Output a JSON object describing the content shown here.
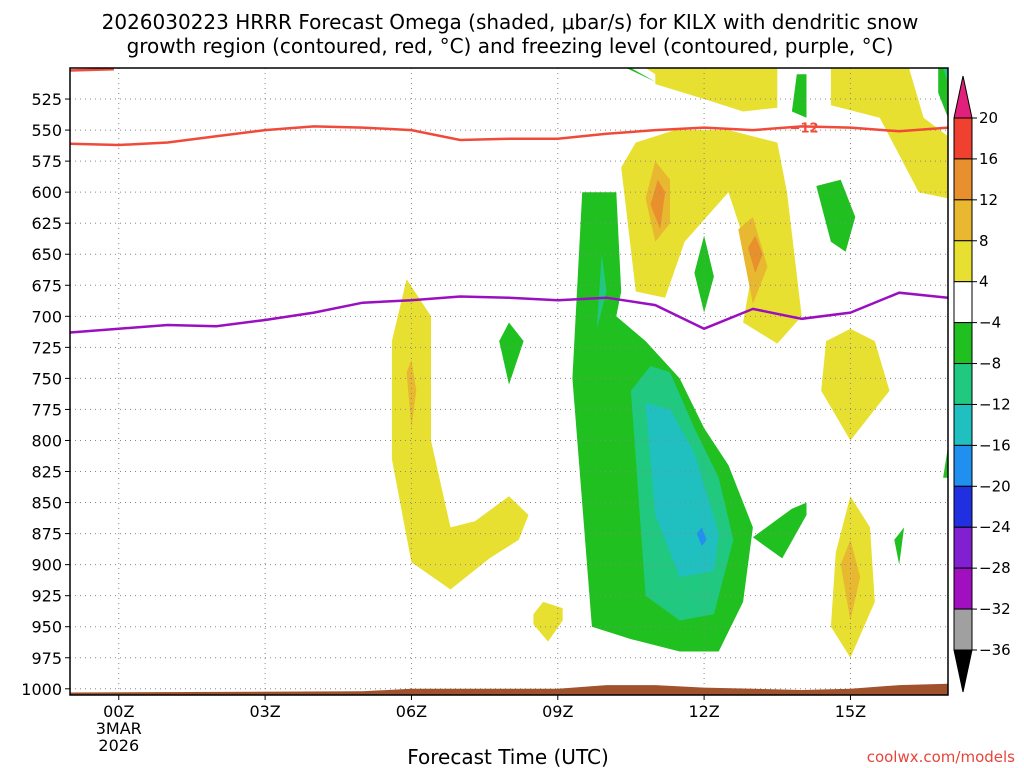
{
  "title_line1": "2026030223 HRRR Forecast Omega (shaded, μbar/s) for KILX with dendritic snow",
  "title_line2": "growth region (contoured, red, °C) and freezing level (contoured, purple, °C)",
  "credit": "coolwx.com/models",
  "chart_data": {
    "type": "heatmap",
    "title": "2026030223 HRRR Forecast Omega (shaded, μbar/s) for KILX with dendritic snow growth region (contoured, red, °C) and freezing level (contoured, purple, °C)",
    "xlabel": "Forecast Time (UTC)",
    "ylabel": "",
    "x_range_hours": [
      -1.0,
      17.0
    ],
    "y_range_hPa": [
      1005,
      500
    ],
    "y_axis_inverted": true,
    "grid": true,
    "x_ticks": [
      {
        "hour": 0,
        "label": "00Z"
      },
      {
        "hour": 3,
        "label": "03Z"
      },
      {
        "hour": 6,
        "label": "06Z"
      },
      {
        "hour": 9,
        "label": "09Z"
      },
      {
        "hour": 12,
        "label": "12Z"
      },
      {
        "hour": 15,
        "label": "15Z"
      }
    ],
    "x_date_line1": "3MAR",
    "x_date_line2": "2026",
    "y_ticks": [
      525,
      550,
      575,
      600,
      625,
      650,
      675,
      700,
      725,
      750,
      775,
      800,
      825,
      850,
      875,
      900,
      925,
      950,
      975,
      1000
    ],
    "colorbar": {
      "placement": "right",
      "levels": [
        20,
        16,
        12,
        8,
        4,
        -4,
        -8,
        -12,
        -16,
        -20,
        -24,
        -28,
        -32,
        -36
      ],
      "labels": [
        "20",
        "16",
        "12",
        "8",
        "4",
        "−4",
        "−8",
        "−12",
        "−16",
        "−20",
        "−24",
        "−28",
        "−32",
        "−36"
      ],
      "colors": [
        "#e8e030",
        "#e8b830",
        "#e8902e",
        "#f04030",
        "#ffffff",
        "#20c020",
        "#20c880",
        "#20c0c0",
        "#2090f0",
        "#2030e0",
        "#8020d0",
        "#a010c0",
        "#a0a0a0"
      ],
      "bin_colors_top_to_bottom": [
        "#f04030",
        "#e8902e",
        "#e8b830",
        "#e8e030",
        "#ffffff",
        "#20c020",
        "#20c880",
        "#20c0c0",
        "#2090f0",
        "#2030e0",
        "#8020d0",
        "#a010c0",
        "#a0a0a0"
      ],
      "over_color": "#e0207a",
      "under_color": "#000000"
    },
    "contours": {
      "dendritic_minus12C": {
        "color": "#f04a3a",
        "label": "−12",
        "points": [
          [
            -1.0,
            561
          ],
          [
            0.0,
            562
          ],
          [
            1.0,
            560
          ],
          [
            2.0,
            555
          ],
          [
            3.0,
            550
          ],
          [
            4.0,
            547
          ],
          [
            5.0,
            548
          ],
          [
            6.0,
            550
          ],
          [
            7.0,
            558
          ],
          [
            8.0,
            557
          ],
          [
            9.0,
            557
          ],
          [
            10.0,
            553
          ],
          [
            11.0,
            550
          ],
          [
            12.0,
            548
          ],
          [
            13.0,
            550
          ],
          [
            14.0,
            547
          ],
          [
            15.0,
            548
          ],
          [
            16.0,
            551
          ],
          [
            17.0,
            548
          ]
        ]
      },
      "dendritic_minus18C_partial": {
        "color": "#f04a3a",
        "points": [
          [
            -1.0,
            502
          ],
          [
            -0.1,
            501
          ]
        ]
      },
      "freezing_level_0C": {
        "color": "#9a10c0",
        "points": [
          [
            -1.0,
            713
          ],
          [
            0.0,
            710
          ],
          [
            1.0,
            707
          ],
          [
            2.0,
            708
          ],
          [
            3.0,
            703
          ],
          [
            4.0,
            697
          ],
          [
            5.0,
            689
          ],
          [
            6.0,
            687
          ],
          [
            7.0,
            684
          ],
          [
            8.0,
            685
          ],
          [
            9.0,
            687
          ],
          [
            10.0,
            685
          ],
          [
            11.0,
            691
          ],
          [
            12.0,
            710
          ],
          [
            13.0,
            694
          ],
          [
            14.0,
            702
          ],
          [
            15.0,
            697
          ],
          [
            16.0,
            681
          ],
          [
            17.0,
            685
          ]
        ]
      }
    },
    "omega_regions": [
      {
        "value_bin": "4 to 8",
        "color": "#e8e030",
        "points": [
          [
            11,
            513
          ],
          [
            12,
            525
          ],
          [
            12.8,
            535
          ],
          [
            13.5,
            532
          ],
          [
            13.5,
            500
          ],
          [
            10.8,
            500
          ],
          [
            11,
            505
          ]
        ]
      },
      {
        "value_bin": "4 to 8",
        "color": "#e8e030",
        "points": [
          [
            10.3,
            580
          ],
          [
            10.6,
            680
          ],
          [
            11.2,
            685
          ],
          [
            11.6,
            640
          ],
          [
            12.5,
            600
          ],
          [
            13,
            660
          ],
          [
            12.8,
            705
          ],
          [
            13.5,
            722
          ],
          [
            14,
            700
          ],
          [
            13.7,
            600
          ],
          [
            13.5,
            560
          ],
          [
            12.5,
            550
          ],
          [
            11.4,
            550
          ],
          [
            10.6,
            560
          ]
        ]
      },
      {
        "value_bin": "4 to 8",
        "color": "#e8e030",
        "points": [
          [
            14.6,
            500
          ],
          [
            14.6,
            530
          ],
          [
            15.6,
            540
          ],
          [
            16,
            570
          ],
          [
            16.4,
            600
          ],
          [
            17,
            605
          ],
          [
            17,
            555
          ],
          [
            16.5,
            540
          ],
          [
            16.2,
            500
          ]
        ]
      },
      {
        "value_bin": "4 to 8",
        "color": "#e8e030",
        "points": [
          [
            5.6,
            815
          ],
          [
            6.0,
            898
          ],
          [
            6.8,
            920
          ],
          [
            7.6,
            895
          ],
          [
            8.2,
            880
          ],
          [
            8.4,
            860
          ],
          [
            8.0,
            845
          ],
          [
            7.3,
            865
          ],
          [
            6.8,
            870
          ],
          [
            6.4,
            800
          ],
          [
            6.4,
            700
          ],
          [
            5.9,
            670
          ],
          [
            5.6,
            720
          ]
        ]
      },
      {
        "value_bin": "4 to 8",
        "color": "#e8e030",
        "points": [
          [
            8.5,
            948
          ],
          [
            8.8,
            962
          ],
          [
            9.1,
            945
          ],
          [
            9.1,
            935
          ],
          [
            8.7,
            930
          ],
          [
            8.5,
            940
          ]
        ]
      },
      {
        "value_bin": "4 to 8",
        "color": "#e8e030",
        "points": [
          [
            14.5,
            720
          ],
          [
            14.4,
            760
          ],
          [
            15.0,
            800
          ],
          [
            15.8,
            760
          ],
          [
            15.5,
            720
          ],
          [
            15.0,
            710
          ]
        ]
      },
      {
        "value_bin": "4 to 8",
        "color": "#e8e030",
        "points": [
          [
            14.7,
            890
          ],
          [
            14.6,
            950
          ],
          [
            15.0,
            975
          ],
          [
            15.5,
            930
          ],
          [
            15.4,
            870
          ],
          [
            15.0,
            845
          ]
        ]
      },
      {
        "value_bin": "8 to 12",
        "color": "#e8b830",
        "points": [
          [
            10.8,
            605
          ],
          [
            11.0,
            640
          ],
          [
            11.3,
            625
          ],
          [
            11.3,
            590
          ],
          [
            11.0,
            575
          ]
        ]
      },
      {
        "value_bin": "8 to 12",
        "color": "#e8b830",
        "points": [
          [
            12.7,
            630
          ],
          [
            13.0,
            690
          ],
          [
            13.3,
            660
          ],
          [
            13.0,
            620
          ]
        ]
      },
      {
        "value_bin": "8 to 12",
        "color": "#e8b830",
        "points": [
          [
            5.9,
            745
          ],
          [
            6.0,
            790
          ],
          [
            6.1,
            760
          ],
          [
            6.0,
            735
          ]
        ]
      },
      {
        "value_bin": "8 to 12",
        "color": "#e8b830",
        "points": [
          [
            14.8,
            900
          ],
          [
            15.0,
            945
          ],
          [
            15.2,
            910
          ],
          [
            15.0,
            880
          ]
        ]
      },
      {
        "value_bin": "8 to 12",
        "color": "#e8b830",
        "points": [
          [
            16.8,
            500
          ],
          [
            17,
            502
          ],
          [
            17,
            510
          ],
          [
            16.9,
            515
          ]
        ]
      },
      {
        "value_bin": "12 to 16",
        "color": "#e8902e",
        "points": [
          [
            10.9,
            610
          ],
          [
            11.1,
            630
          ],
          [
            11.2,
            600
          ],
          [
            11.05,
            590
          ]
        ]
      },
      {
        "value_bin": "12 to 16",
        "color": "#e8902e",
        "points": [
          [
            12.9,
            645
          ],
          [
            13.05,
            665
          ],
          [
            13.2,
            650
          ],
          [
            13.05,
            635
          ]
        ]
      },
      {
        "value_bin": "-4 to -8",
        "color": "#20c020",
        "points": [
          [
            10.2,
            600
          ],
          [
            9.5,
            600
          ],
          [
            9.3,
            750
          ],
          [
            9.7,
            950
          ],
          [
            10.5,
            960
          ],
          [
            11.5,
            970
          ],
          [
            12.3,
            970
          ],
          [
            12.8,
            930
          ],
          [
            13,
            870
          ],
          [
            12.5,
            820
          ],
          [
            12,
            790
          ],
          [
            11.5,
            750
          ],
          [
            10.8,
            720
          ],
          [
            10.2,
            700
          ],
          [
            10.3,
            680
          ]
        ]
      },
      {
        "value_bin": "-4 to -8",
        "color": "#20c020",
        "points": [
          [
            10.4,
            500
          ],
          [
            11,
            511
          ],
          [
            10.5,
            500
          ]
        ]
      },
      {
        "value_bin": "-4 to -8",
        "color": "#20c020",
        "points": [
          [
            12.0,
            635
          ],
          [
            11.8,
            665
          ],
          [
            12.0,
            697
          ],
          [
            12.2,
            668
          ]
        ]
      },
      {
        "value_bin": "-4 to -8",
        "color": "#20c020",
        "points": [
          [
            13.9,
            505
          ],
          [
            13.8,
            535
          ],
          [
            14.1,
            540
          ],
          [
            14.1,
            505
          ]
        ]
      },
      {
        "value_bin": "-4 to -8",
        "color": "#20c020",
        "points": [
          [
            14.3,
            595
          ],
          [
            14.6,
            640
          ],
          [
            14.9,
            648
          ],
          [
            15.1,
            620
          ],
          [
            14.8,
            590
          ]
        ]
      },
      {
        "value_bin": "-4 to -8",
        "color": "#20c020",
        "points": [
          [
            7.8,
            720
          ],
          [
            8.0,
            755
          ],
          [
            8.3,
            720
          ],
          [
            8.0,
            705
          ]
        ]
      },
      {
        "value_bin": "-4 to -8",
        "color": "#20c020",
        "points": [
          [
            13.0,
            878
          ],
          [
            13.6,
            895
          ],
          [
            14.1,
            860
          ],
          [
            14.1,
            850
          ],
          [
            13.8,
            855
          ]
        ]
      },
      {
        "value_bin": "-4 to -8",
        "color": "#20c020",
        "points": [
          [
            15.9,
            880
          ],
          [
            16.1,
            870
          ],
          [
            16.0,
            900
          ]
        ]
      },
      {
        "value_bin": "-4 to -8",
        "color": "#20c020",
        "points": [
          [
            16.8,
            500
          ],
          [
            16.8,
            520
          ],
          [
            17,
            540
          ],
          [
            17,
            500
          ]
        ]
      },
      {
        "value_bin": "-4 to -8",
        "color": "#20c020",
        "points": [
          [
            16.9,
            830
          ],
          [
            17,
            805
          ],
          [
            17,
            830
          ]
        ]
      },
      {
        "value_bin": "-8 to -12",
        "color": "#20c880",
        "points": [
          [
            9.9,
            650
          ],
          [
            9.8,
            710
          ],
          [
            10.0,
            680
          ]
        ]
      },
      {
        "value_bin": "-8 to -12",
        "color": "#20c880",
        "points": [
          [
            10.5,
            760
          ],
          [
            10.8,
            925
          ],
          [
            11.5,
            945
          ],
          [
            12.2,
            940
          ],
          [
            12.6,
            880
          ],
          [
            12.3,
            830
          ],
          [
            11.8,
            790
          ],
          [
            11.3,
            745
          ],
          [
            10.9,
            740
          ]
        ]
      },
      {
        "value_bin": "-12 to -16",
        "color": "#20c0c0",
        "points": [
          [
            10.8,
            770
          ],
          [
            11.0,
            860
          ],
          [
            11.5,
            910
          ],
          [
            12.2,
            905
          ],
          [
            12.3,
            875
          ],
          [
            11.8,
            810
          ],
          [
            11.3,
            775
          ]
        ]
      },
      {
        "value_bin": "-16 to -20",
        "color": "#2090f0",
        "points": [
          [
            11.85,
            875
          ],
          [
            11.95,
            885
          ],
          [
            12.05,
            880
          ],
          [
            11.95,
            870
          ]
        ]
      },
      {
        "value_bin": "-8 to -12",
        "color": "#20c880",
        "points": [
          [
            16.9,
            500
          ],
          [
            17,
            500
          ],
          [
            17,
            512
          ]
        ]
      }
    ],
    "terrain": {
      "color": "#a0522d",
      "top_hPa": [
        [
          -1.0,
          1003
        ],
        [
          5.0,
          1002
        ],
        [
          6.0,
          1000
        ],
        [
          9.0,
          1000
        ],
        [
          10.0,
          997
        ],
        [
          11.0,
          997
        ],
        [
          12.0,
          999
        ],
        [
          13.0,
          1000
        ],
        [
          14.0,
          1001
        ],
        [
          15.0,
          1000
        ],
        [
          16.0,
          997
        ],
        [
          17.0,
          996
        ]
      ]
    }
  }
}
